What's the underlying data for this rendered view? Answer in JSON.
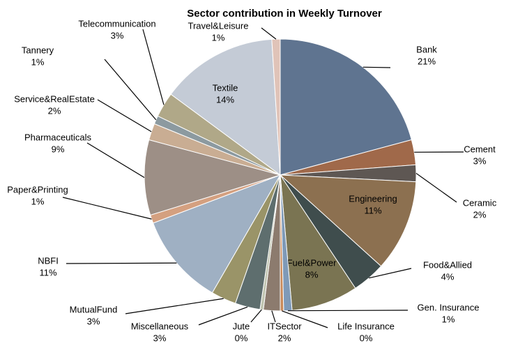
{
  "chart_data": {
    "type": "pie",
    "title": "Sector contribution in Weekly  Turnover",
    "categories": [
      "Bank",
      "Cement",
      "Ceramic",
      "Engineering",
      "Food&Allied",
      "Fuel&Power",
      "Gen. Insurance",
      "Life Insurance",
      "ITSector",
      "Jute",
      "Miscellaneous",
      "MutualFund",
      "NBFI",
      "Paper&Printing",
      "Pharmaceuticals",
      "Service&RealEstate",
      "Tannery",
      "Telecommunication",
      "Textile",
      "Travel&Leisure"
    ],
    "values": [
      21,
      3,
      2,
      11,
      4,
      8,
      1,
      0.4,
      2,
      0.4,
      3,
      3,
      11,
      1,
      9,
      2,
      1,
      3,
      14,
      1
    ],
    "value_labels": [
      "21%",
      "3%",
      "2%",
      "11%",
      "4%",
      "8%",
      "1%",
      "0%",
      "2%",
      "0%",
      "3%",
      "3%",
      "11%",
      "1%",
      "9%",
      "2%",
      "1%",
      "3%",
      "14%",
      "1%"
    ],
    "colors": [
      "#5f7490",
      "#a0694a",
      "#5e5753",
      "#8c7050",
      "#3f4d4d",
      "#7a7452",
      "#7f9ab8",
      "#c98a5a",
      "#8c7b6e",
      "#c0c4b0",
      "#5e6e6e",
      "#9a9468",
      "#9fb0c3",
      "#d4a080",
      "#9d8f86",
      "#c9ad93",
      "#8c9aa0",
      "#b0a888",
      "#c4cbd6",
      "#e0c3b8"
    ]
  }
}
